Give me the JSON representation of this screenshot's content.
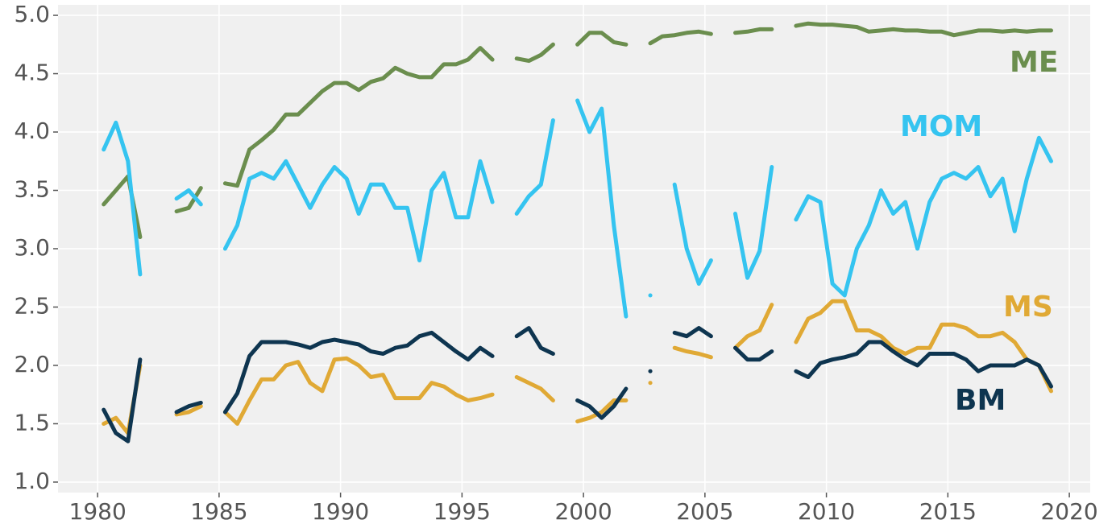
{
  "chart_data": {
    "type": "line",
    "x": [
      1980.25,
      1980.75,
      1981.25,
      1981.75,
      1982.25,
      1982.75,
      1983.25,
      1983.75,
      1984.25,
      1984.75,
      1985.25,
      1985.75,
      1986.25,
      1986.75,
      1987.25,
      1987.75,
      1988.25,
      1988.75,
      1989.25,
      1989.75,
      1990.25,
      1990.75,
      1991.25,
      1991.75,
      1992.25,
      1992.75,
      1993.25,
      1993.75,
      1994.25,
      1994.75,
      1995.25,
      1995.75,
      1996.25,
      1996.75,
      1997.25,
      1997.75,
      1998.25,
      1998.75,
      1999.25,
      1999.75,
      2000.25,
      2000.75,
      2001.25,
      2001.75,
      2002.25,
      2002.75,
      2003.25,
      2003.75,
      2004.25,
      2004.75,
      2005.25,
      2005.75,
      2006.25,
      2006.75,
      2007.25,
      2007.75,
      2008.25,
      2008.75,
      2009.25,
      2009.75,
      2010.25,
      2010.75,
      2011.25,
      2011.75,
      2012.25,
      2012.75,
      2013.25,
      2013.75,
      2014.25,
      2014.75,
      2015.25,
      2015.75,
      2016.25,
      2016.75,
      2017.25,
      2017.75,
      2018.25,
      2018.75,
      2019.25
    ],
    "series": [
      {
        "name": "ME",
        "color": "#6b8e4e",
        "values": [
          3.38,
          3.5,
          3.62,
          3.1,
          null,
          null,
          3.32,
          3.35,
          3.52,
          null,
          3.56,
          3.54,
          3.85,
          3.93,
          4.02,
          4.15,
          4.15,
          4.25,
          4.35,
          4.42,
          4.42,
          4.36,
          4.43,
          4.46,
          4.55,
          4.5,
          4.47,
          4.47,
          4.58,
          4.58,
          4.62,
          4.72,
          4.62,
          null,
          4.63,
          4.61,
          4.66,
          4.75,
          null,
          4.75,
          4.85,
          4.85,
          4.77,
          4.75,
          null,
          4.76,
          4.82,
          4.83,
          4.85,
          4.86,
          4.84,
          null,
          4.85,
          4.86,
          4.88,
          4.88,
          null,
          4.91,
          4.93,
          4.92,
          4.92,
          4.91,
          4.9,
          4.86,
          4.87,
          4.88,
          4.87,
          4.87,
          4.86,
          4.86,
          4.83,
          4.85,
          4.87,
          4.87,
          4.86,
          4.87,
          4.86,
          4.87,
          4.87
        ]
      },
      {
        "name": "MOM",
        "color": "#35c4f0",
        "values": [
          3.85,
          4.08,
          3.75,
          2.78,
          null,
          null,
          3.43,
          3.5,
          3.38,
          null,
          3.0,
          3.2,
          3.6,
          3.65,
          3.6,
          3.75,
          3.55,
          3.35,
          3.55,
          3.7,
          3.6,
          3.3,
          3.55,
          3.55,
          3.35,
          3.35,
          2.9,
          3.5,
          3.65,
          3.27,
          3.27,
          3.75,
          3.4,
          null,
          3.3,
          3.45,
          3.55,
          4.1,
          null,
          4.27,
          4.0,
          4.2,
          3.2,
          2.42,
          null,
          2.6,
          null,
          3.55,
          3.0,
          2.7,
          2.9,
          null,
          3.3,
          2.75,
          2.98,
          3.7,
          null,
          3.25,
          3.45,
          3.4,
          2.7,
          2.6,
          3.0,
          3.2,
          3.5,
          3.3,
          3.4,
          3.0,
          3.4,
          3.6,
          3.65,
          3.6,
          3.7,
          3.45,
          3.6,
          3.15,
          3.6,
          3.95,
          3.75
        ]
      },
      {
        "name": "MS",
        "color": "#e0a935",
        "values": [
          1.5,
          1.55,
          1.42,
          2.0,
          null,
          null,
          1.58,
          1.6,
          1.65,
          null,
          1.6,
          1.5,
          1.7,
          1.88,
          1.88,
          2.0,
          2.03,
          1.85,
          1.78,
          2.05,
          2.06,
          2.0,
          1.9,
          1.92,
          1.72,
          1.72,
          1.72,
          1.85,
          1.82,
          1.75,
          1.7,
          1.72,
          1.75,
          null,
          1.9,
          1.85,
          1.8,
          1.7,
          null,
          1.52,
          1.55,
          1.6,
          1.7,
          1.7,
          null,
          1.85,
          null,
          2.15,
          2.12,
          2.1,
          2.07,
          null,
          2.15,
          2.25,
          2.3,
          2.52,
          null,
          2.2,
          2.4,
          2.45,
          2.55,
          2.55,
          2.3,
          2.3,
          2.25,
          2.15,
          2.1,
          2.15,
          2.15,
          2.35,
          2.35,
          2.32,
          2.25,
          2.25,
          2.28,
          2.2,
          2.05,
          2.0,
          1.78
        ]
      },
      {
        "name": "BM",
        "color": "#0e3550",
        "values": [
          1.62,
          1.42,
          1.35,
          2.05,
          null,
          null,
          1.6,
          1.65,
          1.68,
          null,
          1.6,
          1.76,
          2.08,
          2.2,
          2.2,
          2.2,
          2.18,
          2.15,
          2.2,
          2.22,
          2.2,
          2.18,
          2.12,
          2.1,
          2.15,
          2.17,
          2.25,
          2.28,
          2.2,
          2.12,
          2.05,
          2.15,
          2.08,
          null,
          2.25,
          2.32,
          2.15,
          2.1,
          null,
          1.7,
          1.65,
          1.55,
          1.65,
          1.8,
          null,
          1.95,
          null,
          2.28,
          2.25,
          2.32,
          2.25,
          null,
          2.15,
          2.05,
          2.05,
          2.12,
          null,
          1.95,
          1.9,
          2.02,
          2.05,
          2.07,
          2.1,
          2.2,
          2.2,
          2.12,
          2.05,
          2.0,
          2.1,
          2.1,
          2.1,
          2.05,
          1.95,
          2.0,
          2.0,
          2.0,
          2.05,
          2.0,
          1.82
        ]
      }
    ],
    "xlim": [
      1978.37,
      2020.86
    ],
    "ylim": [
      0.91,
      5.09
    ],
    "xticks": [
      1980,
      1985,
      1990,
      1995,
      2000,
      2005,
      2010,
      2015,
      2020
    ],
    "yticks": [
      {
        "value": 1.0,
        "label": "1.0"
      },
      1.5,
      {
        "value": 2.0,
        "label": "2.0"
      },
      2.5,
      {
        "value": 3.0,
        "label": "3.0"
      },
      3.5,
      {
        "value": 4.0,
        "label": "4.0"
      },
      4.5,
      {
        "value": 5.0,
        "label": "5.0"
      }
    ],
    "grid": true
  }
}
